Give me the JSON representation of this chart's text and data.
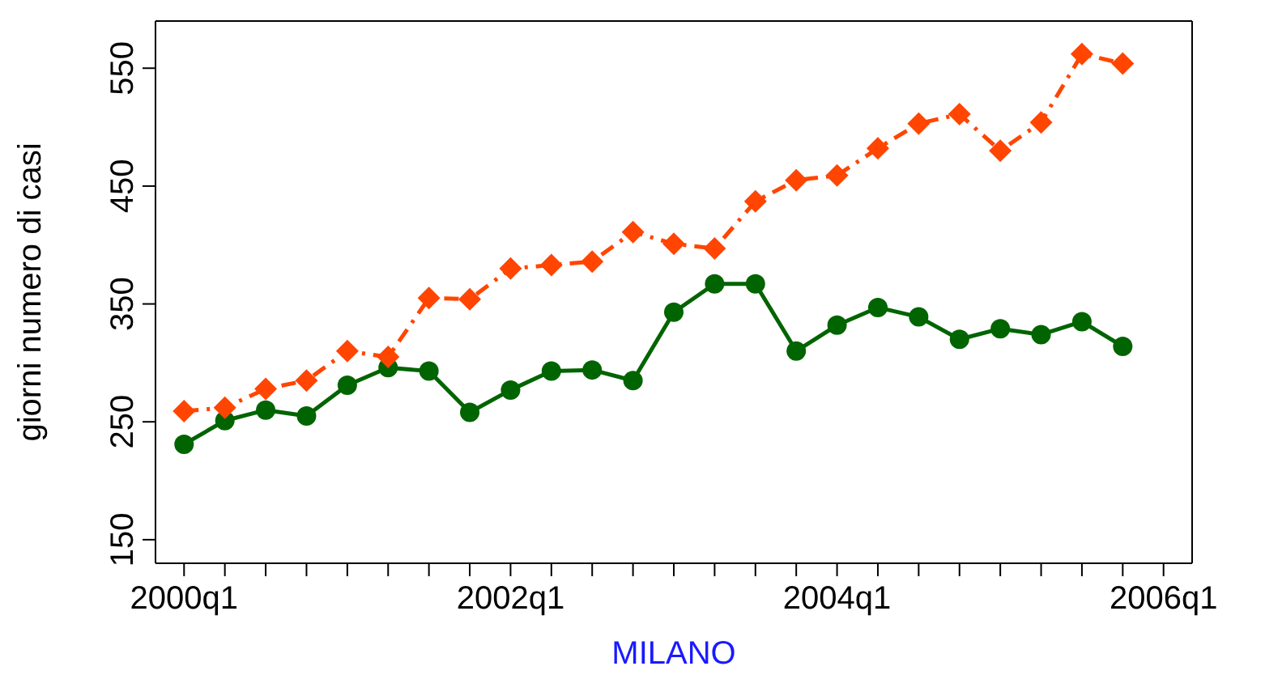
{
  "chart_data": {
    "type": "line",
    "xlabel": "MILANO",
    "ylabel": "giorni numero di casi",
    "categories": [
      "2000q1",
      null,
      null,
      null,
      null,
      null,
      null,
      null,
      "2002q1",
      null,
      null,
      null,
      null,
      null,
      null,
      null,
      "2004q1",
      null,
      null,
      null,
      null,
      null,
      null,
      null,
      "2006q1"
    ],
    "ylim": [
      130,
      590
    ],
    "yticks": [
      150,
      250,
      350,
      450,
      550
    ],
    "series": [
      {
        "color": "#006400",
        "marker": "circle",
        "line_style": "solid",
        "values": [
          231,
          251,
          260,
          255,
          281,
          296,
          293,
          258,
          277,
          293,
          294,
          285,
          343,
          367,
          367,
          310,
          332,
          347,
          339,
          320,
          329,
          324,
          335,
          314,
          null
        ]
      },
      {
        "color": "#ff4500",
        "marker": "diamond",
        "line_style": "dashdot",
        "values": [
          259,
          262,
          278,
          285,
          310,
          305,
          355,
          354,
          380,
          383,
          386,
          411,
          401,
          397,
          437,
          455,
          459,
          482,
          503,
          511,
          480,
          504,
          562,
          554,
          null
        ]
      }
    ]
  }
}
